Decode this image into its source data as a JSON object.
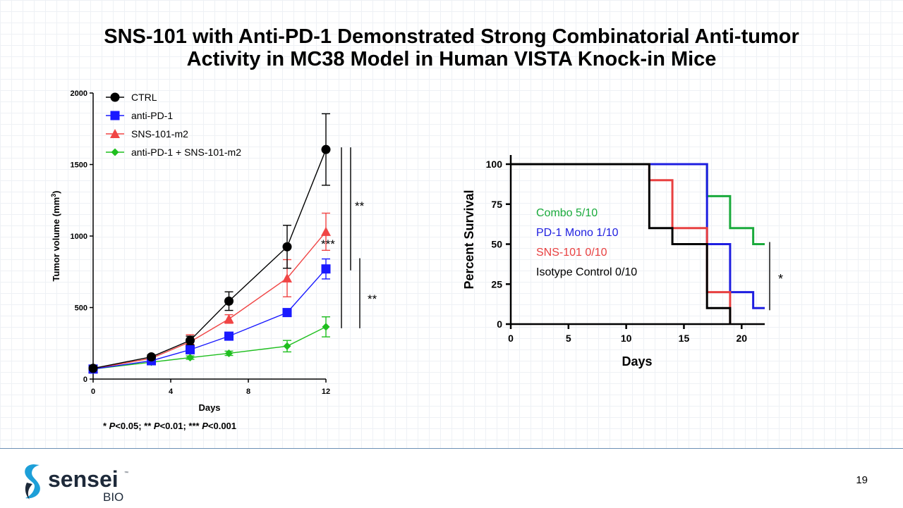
{
  "slide": {
    "title_line1": "SNS-101 with Anti-PD-1 Demonstrated Strong Combinatorial Anti-tumor",
    "title_line2": "Activity in MC38 Model in Human VISTA Knock-in Mice",
    "page_number": "19",
    "logo": {
      "wordmark": "sensei",
      "sub": "BIO",
      "tm": "™"
    }
  },
  "chart_data": [
    {
      "type": "line",
      "xlabel": "Days",
      "ylabel": "Tumor volume (mm³)",
      "ylabel_main": "Tumor volume (mm",
      "ylabel_sup": "3",
      "ylabel_end": ")",
      "xlim": [
        0,
        12
      ],
      "ylim": [
        0,
        2000
      ],
      "xticks": [
        0,
        4,
        8,
        12
      ],
      "yticks": [
        0,
        500,
        1000,
        1500,
        2000
      ],
      "x": [
        0,
        3,
        5,
        7,
        10,
        12
      ],
      "legend_position": "top-left",
      "footnote_parts": [
        "* ",
        "P",
        "<0.05; ** ",
        "P",
        "<0.01; *** ",
        "P",
        "<0.001"
      ],
      "series": [
        {
          "name": "CTRL",
          "color": "#000000",
          "marker": "circle",
          "values": [
            75,
            155,
            270,
            545,
            925,
            1605
          ],
          "err": [
            0,
            15,
            30,
            65,
            150,
            250
          ]
        },
        {
          "name": "anti-PD-1",
          "color": "#1a1aff",
          "marker": "square",
          "values": [
            70,
            128,
            205,
            300,
            465,
            770
          ],
          "err": [
            0,
            10,
            20,
            25,
            25,
            70
          ]
        },
        {
          "name": "SNS-101-m2",
          "color": "#f04545",
          "marker": "triangle",
          "values": [
            72,
            145,
            260,
            420,
            705,
            1030
          ],
          "err": [
            0,
            12,
            50,
            30,
            130,
            130
          ]
        },
        {
          "name": "anti-PD-1 + SNS-101-m2",
          "color": "#1fbf1f",
          "marker": "diamond",
          "values": [
            70,
            118,
            150,
            180,
            230,
            365
          ],
          "err": [
            0,
            10,
            12,
            15,
            40,
            70
          ]
        }
      ],
      "significance": [
        {
          "label": "**",
          "from": 1605,
          "to": 770
        },
        {
          "label": "***",
          "from": 1605,
          "to": 365
        },
        {
          "label": "**",
          "from": 830,
          "to": 365
        }
      ]
    },
    {
      "type": "line",
      "subtype": "step",
      "xlabel": "Days",
      "ylabel": "Percent Survival",
      "xlim": [
        0,
        22
      ],
      "ylim": [
        0,
        100
      ],
      "xticks": [
        0,
        5,
        10,
        15,
        20
      ],
      "yticks": [
        0,
        25,
        50,
        75,
        100
      ],
      "series": [
        {
          "name": "Combo 5/10",
          "color": "#1aaa3c",
          "x": [
            0,
            17,
            19,
            21,
            22
          ],
          "values": [
            100,
            80,
            60,
            50,
            50
          ]
        },
        {
          "name": "PD-1 Mono 1/10",
          "color": "#1e1ee0",
          "x": [
            0,
            17,
            19,
            21,
            22
          ],
          "values": [
            100,
            50,
            20,
            10,
            10
          ]
        },
        {
          "name": "SNS-101 0/10",
          "color": "#e84040",
          "x": [
            0,
            12,
            14,
            17,
            19
          ],
          "values": [
            100,
            90,
            60,
            20,
            0
          ]
        },
        {
          "name": "Isotype Control 0/10",
          "color": "#000000",
          "x": [
            0,
            12,
            14,
            17,
            19
          ],
          "values": [
            100,
            60,
            50,
            10,
            0
          ]
        }
      ],
      "significance": [
        {
          "label": "*",
          "from": 50,
          "to": 10
        }
      ]
    }
  ]
}
